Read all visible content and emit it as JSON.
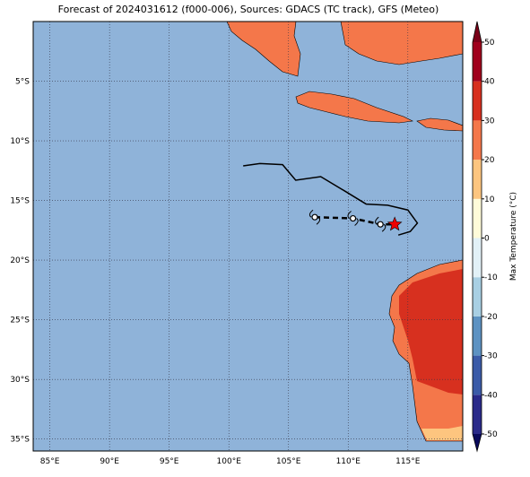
{
  "map": {
    "title": "Forecast of 2024031612 (f000-006), Sources: GDACS (TC track), GFS (Meteo)",
    "xlim": [
      83.6,
      119.6
    ],
    "ylim": [
      -36,
      0
    ],
    "xticks": [
      {
        "value": 85,
        "label": "85°E"
      },
      {
        "value": 90,
        "label": "90°E"
      },
      {
        "value": 95,
        "label": "95°E"
      },
      {
        "value": 100,
        "label": "100°E"
      },
      {
        "value": 105,
        "label": "105°E"
      },
      {
        "value": 110,
        "label": "110°E"
      },
      {
        "value": 115,
        "label": "115°E"
      }
    ],
    "yticks": [
      {
        "value": -5,
        "label": "5°S"
      },
      {
        "value": -10,
        "label": "10°S"
      },
      {
        "value": -15,
        "label": "15°S"
      },
      {
        "value": -20,
        "label": "20°S"
      },
      {
        "value": -25,
        "label": "25°S"
      },
      {
        "value": -30,
        "label": "30°S"
      },
      {
        "value": -35,
        "label": "35°S"
      }
    ],
    "grid": true,
    "track": {
      "lon": [
        101.2,
        102.6,
        104.5,
        105.6,
        107.7,
        109.7,
        111.5,
        113.3,
        115.0,
        115.8,
        115.2,
        114.2
      ],
      "lat": [
        -12.1,
        -11.9,
        -12.0,
        -13.3,
        -13.0,
        -14.2,
        -15.3,
        -15.4,
        -15.8,
        -16.9,
        -17.6,
        -17.9
      ]
    },
    "forecast": {
      "lon": [
        107.2,
        110.4,
        112.7,
        113.9
      ],
      "lat": [
        -16.4,
        -16.5,
        -17.0,
        -17.0
      ]
    },
    "colorbar": {
      "label": "Max Temperature (°C)",
      "lim": [
        -50,
        50
      ],
      "ticks": [
        -50,
        -40,
        -30,
        -20,
        -10,
        0,
        10,
        20,
        30,
        40,
        50
      ],
      "colors": [
        "#2a2a8a",
        "#3b5ba8",
        "#5d92c2",
        "#a8cfe3",
        "#e2f1f7",
        "#fffbd9",
        "#fdc57f",
        "#f4774a",
        "#d7301f",
        "#a0001c"
      ],
      "under_color": "#0a0a5c",
      "over_color": "#7a0018"
    }
  }
}
